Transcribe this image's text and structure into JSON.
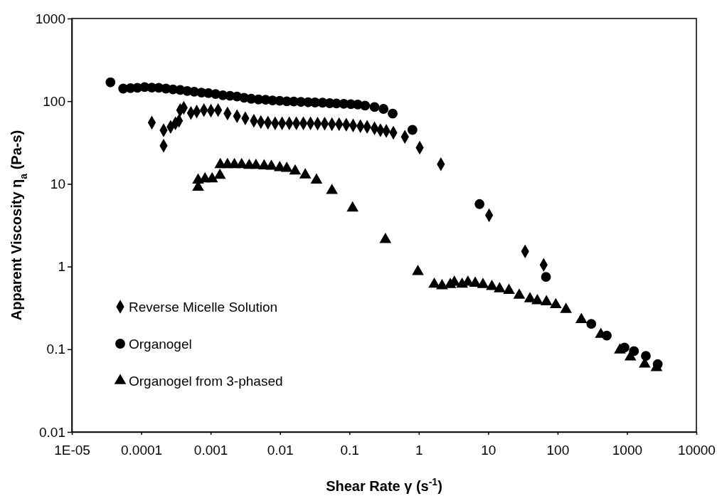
{
  "chart_data": {
    "type": "scatter",
    "xlabel": "Shear Rate γ  (s$^{-1}$)",
    "ylabel": "Apparent Viscosity  η$_{a}$  (Pa-s)",
    "log": "xy",
    "grid": false,
    "legend": "bottom left",
    "xlim": [
      1e-05,
      10000
    ],
    "xticks": [
      {
        "value": 1e-05,
        "label": "1E-05"
      },
      0.0001,
      0.001,
      0.01,
      0.1,
      1,
      10,
      100,
      1000,
      10000
    ],
    "ylim": [
      0.01,
      1000
    ],
    "yticks": [
      0.01,
      0.1,
      1,
      10,
      100,
      1000
    ],
    "series": [
      {
        "name": "Reverse Micelle Solution",
        "color": "#000000",
        "marker": "diamond",
        "x": [
          0.000142,
          0.00021,
          0.00021,
          0.000265,
          0.000311,
          0.00035,
          0.000364,
          0.00041,
          0.00052,
          0.00063,
          0.0008,
          0.00101,
          0.00128,
          0.00175,
          0.0024,
          0.00316,
          0.0042,
          0.0053,
          0.0067,
          0.0085,
          0.0107,
          0.0136,
          0.0172,
          0.0217,
          0.0275,
          0.0348,
          0.044,
          0.056,
          0.071,
          0.09,
          0.113,
          0.144,
          0.18,
          0.23,
          0.28,
          0.34,
          0.43,
          0.63,
          1.03,
          2.08,
          10.3,
          34,
          63
        ],
        "values": [
          55,
          44.6,
          29,
          49,
          54,
          58,
          78,
          83,
          72,
          75,
          78,
          77,
          78,
          71,
          66,
          62,
          58,
          56,
          55,
          54,
          54,
          54,
          54,
          54,
          54,
          53.5,
          53.5,
          52.8,
          52.8,
          52,
          51,
          50,
          49,
          47,
          44.6,
          43.6,
          41.6,
          37,
          27.4,
          17.3,
          4.17,
          1.53,
          1.05
        ]
      },
      {
        "name": "Organogel",
        "color": "#000000",
        "marker": "circle",
        "x": [
          3.6e-05,
          5.5e-05,
          7e-05,
          8.8e-05,
          0.000112,
          0.000142,
          0.000179,
          0.000227,
          0.000287,
          0.000364,
          0.00046,
          0.00058,
          0.00074,
          0.00093,
          0.00118,
          0.0015,
          0.0019,
          0.0024,
          0.00304,
          0.00385,
          0.0049,
          0.0062,
          0.0078,
          0.0099,
          0.0125,
          0.0158,
          0.02,
          0.0254,
          0.032,
          0.041,
          0.052,
          0.065,
          0.083,
          0.105,
          0.132,
          0.168,
          0.23,
          0.31,
          0.42,
          0.81,
          7.5,
          68,
          306,
          511,
          920,
          1260,
          1870,
          2770
        ],
        "values": [
          169,
          142,
          144,
          145,
          148,
          146,
          145,
          142,
          139,
          137,
          133,
          130,
          127,
          125,
          122,
          118,
          116,
          114,
          110,
          107,
          105,
          104,
          102,
          101,
          99.6,
          99.2,
          98,
          97,
          96.5,
          96,
          94.6,
          94,
          93,
          92,
          91,
          88.5,
          85,
          80.7,
          70.7,
          45,
          5.7,
          0.75,
          0.203,
          0.146,
          0.105,
          0.095,
          0.083,
          0.066
        ]
      },
      {
        "name": "Organogel from 3-phased",
        "color": "#000000",
        "marker": "triangle",
        "x": [
          0.00066,
          0.00066,
          0.00083,
          0.00105,
          0.00136,
          0.00138,
          0.00175,
          0.0022,
          0.0028,
          0.0036,
          0.0045,
          0.0059,
          0.0075,
          0.0099,
          0.0125,
          0.0165,
          0.0231,
          0.0335,
          0.056,
          0.111,
          0.33,
          0.97,
          1.67,
          2.16,
          2.84,
          3.25,
          4.2,
          5.1,
          6.5,
          8.4,
          11.3,
          14.6,
          19.9,
          28,
          40,
          51,
          69,
          94,
          132,
          220,
          420,
          790,
          1120,
          1800,
          2660
        ],
        "values": [
          9.1,
          11.1,
          11.5,
          11.5,
          12.7,
          17.1,
          17.1,
          17.1,
          17.1,
          16.7,
          16.7,
          16.5,
          16.3,
          15.7,
          15.4,
          14.3,
          12.8,
          11.1,
          8.3,
          5.1,
          2.12,
          0.87,
          0.61,
          0.585,
          0.605,
          0.646,
          0.61,
          0.646,
          0.627,
          0.605,
          0.574,
          0.537,
          0.514,
          0.45,
          0.407,
          0.386,
          0.374,
          0.345,
          0.303,
          0.228,
          0.151,
          0.098,
          0.0805,
          0.066,
          0.06
        ]
      }
    ]
  }
}
